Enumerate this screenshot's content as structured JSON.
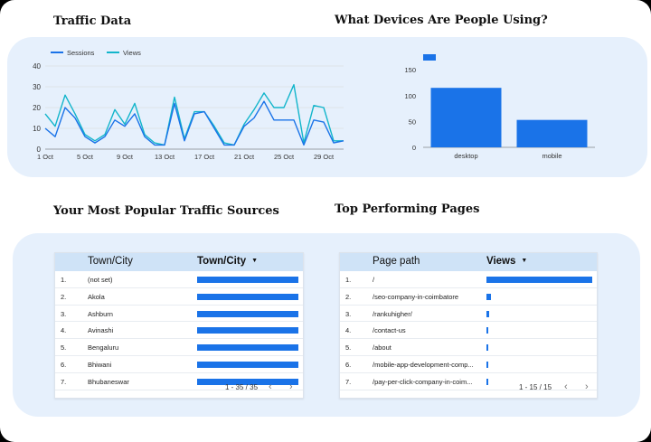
{
  "sections": {
    "traffic_title": "Traffic Data",
    "devices_title": "What Devices Are People Using?",
    "sources_title": "Your Most Popular Traffic Sources",
    "pages_title": "Top Performing Pages"
  },
  "colors": {
    "sessions": "#1a73e8",
    "views": "#12b5cb",
    "bar": "#1a73e8",
    "panel": "#e6f0fc",
    "header": "#cfe3f7"
  },
  "chart_data": [
    {
      "type": "line",
      "title": "",
      "xlabel": "",
      "ylabel": "",
      "ylim": [
        0,
        40
      ],
      "yticks": [
        0,
        10,
        20,
        30,
        40
      ],
      "x_tick_labels": [
        "1 Oct",
        "5 Oct",
        "9 Oct",
        "13 Oct",
        "17 Oct",
        "21 Oct",
        "25 Oct",
        "29 Oct"
      ],
      "x_tick_days": [
        1,
        5,
        9,
        13,
        17,
        21,
        25,
        29
      ],
      "x_days": [
        1,
        2,
        3,
        4,
        5,
        6,
        7,
        8,
        9,
        10,
        11,
        12,
        13,
        14,
        15,
        16,
        17,
        18,
        19,
        20,
        21,
        22,
        23,
        24,
        25,
        26,
        27,
        28,
        29,
        30,
        31
      ],
      "grid": true,
      "legend": "top-left",
      "series": [
        {
          "name": "Sessions",
          "values": [
            10,
            6,
            20,
            15,
            6,
            3,
            6,
            14,
            11,
            17,
            6,
            2,
            2,
            22,
            4,
            17,
            18,
            10,
            2,
            2,
            11,
            15,
            23,
            14,
            14,
            14,
            2,
            14,
            13,
            3,
            4
          ]
        },
        {
          "name": "Views",
          "values": [
            17,
            11,
            26,
            17,
            7,
            4,
            7,
            19,
            12,
            22,
            7,
            3,
            2,
            25,
            5,
            18,
            18,
            11,
            3,
            2,
            12,
            19,
            27,
            20,
            20,
            31,
            3,
            21,
            20,
            4,
            4
          ]
        }
      ]
    },
    {
      "type": "bar",
      "title": "",
      "xlabel": "",
      "ylabel": "",
      "ylim": [
        0,
        180
      ],
      "yticks": [
        0,
        50,
        100,
        150
      ],
      "categories": [
        "desktop",
        "mobile"
      ],
      "values": [
        115,
        53
      ],
      "grid": false,
      "legend": "top-left"
    }
  ],
  "sources_table": {
    "headers": [
      "Town/City",
      "Town/City"
    ],
    "rows": [
      {
        "idx": "1.",
        "label": "(not set)",
        "value": 1.0
      },
      {
        "idx": "2.",
        "label": "Akola",
        "value": 1.0
      },
      {
        "idx": "3.",
        "label": "Ashburn",
        "value": 1.0
      },
      {
        "idx": "4.",
        "label": "Avinashi",
        "value": 1.0
      },
      {
        "idx": "5.",
        "label": "Bengaluru",
        "value": 1.0
      },
      {
        "idx": "6.",
        "label": "Bhiwani",
        "value": 1.0
      },
      {
        "idx": "7.",
        "label": "Bhubaneswar",
        "value": 1.0
      }
    ],
    "pagination": "1 - 35 / 35"
  },
  "pages_table": {
    "headers": [
      "Page path",
      "Views"
    ],
    "rows": [
      {
        "idx": "1.",
        "label": "/",
        "value": 1.0
      },
      {
        "idx": "2.",
        "label": "/seo-company-in-coimbatore",
        "value": 0.04
      },
      {
        "idx": "3.",
        "label": "/rankuhigher/",
        "value": 0.025
      },
      {
        "idx": "4.",
        "label": "/contact-us",
        "value": 0.02
      },
      {
        "idx": "5.",
        "label": "/about",
        "value": 0.015
      },
      {
        "idx": "6.",
        "label": "/mobile-app-development-comp...",
        "value": 0.015
      },
      {
        "idx": "7.",
        "label": "/pay-per-click-company-in-coim...",
        "value": 0.015
      }
    ],
    "pagination": "1 - 15 / 15"
  }
}
